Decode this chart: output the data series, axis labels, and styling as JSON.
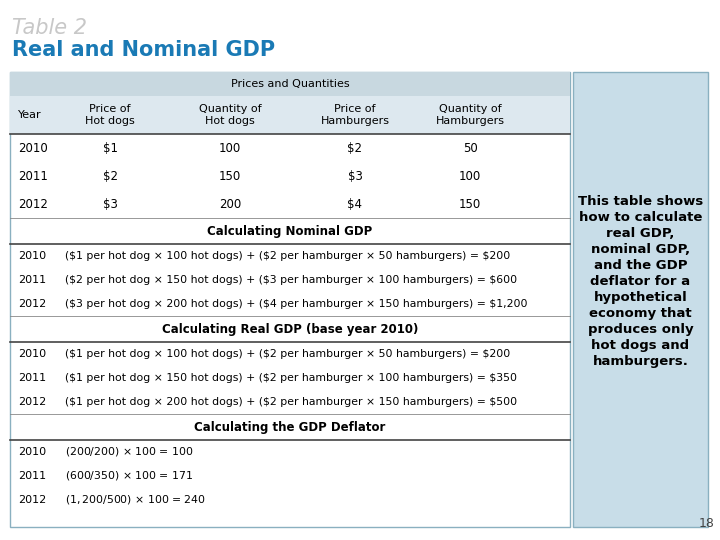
{
  "title1": "Table 2",
  "title2": "Real and Nominal GDP",
  "title1_color": "#c8c8c8",
  "title2_color": "#1a7ab5",
  "bg_color": "#ffffff",
  "table_bg": "#ffffff",
  "side_panel_color": "#c8dde8",
  "header_bg": "#c8d8e0",
  "header_row_bg": "#dde8ef",
  "side_text_lines": [
    "This table shows",
    "how to calculate",
    "real GDP,",
    "nominal GDP,",
    "and the GDP",
    "deflator for a",
    "hypothetical",
    "economy that",
    "produces only",
    "hot dogs and",
    "hamburgers."
  ],
  "page_number": "18",
  "prices_quantities_header": "Prices and Quantities",
  "col_headers": [
    "Year",
    "Price of\nHot dogs",
    "Quantity of\nHot dogs",
    "Price of\nHamburgers",
    "Quantity of\nHamburgers"
  ],
  "pq_data": [
    [
      "2010",
      "$1",
      "100",
      "$2",
      "50"
    ],
    [
      "2011",
      "$2",
      "150",
      "$3",
      "100"
    ],
    [
      "2012",
      "$3",
      "200",
      "$4",
      "150"
    ]
  ],
  "nominal_gdp_header": "Calculating Nominal GDP",
  "nominal_gdp_data": [
    [
      "2010",
      "($1 per hot dog × 100 hot dogs) + ($2 per hamburger × 50 hamburgers) = $200"
    ],
    [
      "2011",
      "($2 per hot dog × 150 hot dogs) + ($3 per hamburger × 100 hamburgers) = $600"
    ],
    [
      "2012",
      "($3 per hot dog × 200 hot dogs) + ($4 per hamburger × 150 hamburgers) = $1,200"
    ]
  ],
  "real_gdp_header": "Calculating Real GDP (base year 2010)",
  "real_gdp_data": [
    [
      "2010",
      "($1 per hot dog × 100 hot dogs) + ($2 per hamburger × 50 hamburgers) = $200"
    ],
    [
      "2011",
      "($1 per hot dog × 150 hot dogs) + ($2 per hamburger × 100 hamburgers) = $350"
    ],
    [
      "2012",
      "($1 per hot dog × 200 hot dogs) + ($2 per hamburger × 150 hamburgers) = $500"
    ]
  ],
  "deflator_header": "Calculating the GDP Deflator",
  "deflator_data": [
    [
      "2010",
      "($200 / $200) × 100 = 100"
    ],
    [
      "2011",
      "($600 / $350) × 100 = 171"
    ],
    [
      "2012",
      "($1,200 / $500) × 100 = 240"
    ]
  ]
}
